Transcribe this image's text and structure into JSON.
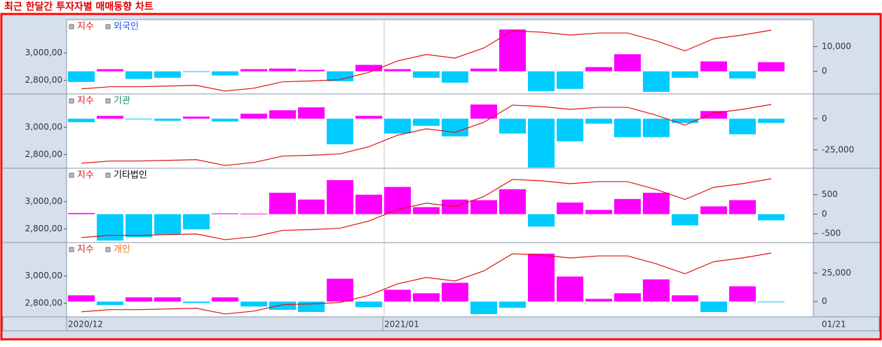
{
  "chart_data": {
    "type": "combo",
    "title": "최근 한달간 투자자별 매매동향 차트",
    "categories": [
      "2020/12",
      null,
      null,
      null,
      null,
      null,
      null,
      null,
      null,
      null,
      null,
      "2021/01",
      null,
      null,
      null,
      null,
      null,
      null,
      null,
      null,
      null,
      null,
      null,
      null,
      null
    ],
    "end_label": "01/21",
    "positive_color": "#ff00ff",
    "negative_color": "#00ccff",
    "index": {
      "name": "지수",
      "color": "#e01010",
      "values": [
        2737,
        2753,
        2753,
        2758,
        2763,
        2721,
        2742,
        2789,
        2795,
        2805,
        2858,
        2942,
        2989,
        2963,
        3037,
        3163,
        3153,
        3132,
        3147,
        3147,
        3089,
        3016,
        3105,
        3132,
        3168
      ],
      "ylim": [
        2700,
        3245
      ],
      "yticks": [
        {
          "value": 3000,
          "label": "3,000,00"
        },
        {
          "value": 2800,
          "label": "2,800,00"
        }
      ]
    },
    "series": [
      {
        "name": "외국인",
        "color": "#2050ff",
        "values": [
          -4300,
          860,
          -3100,
          -2600,
          -300,
          -1700,
          860,
          1100,
          600,
          -4000,
          2600,
          860,
          -2600,
          -4600,
          1100,
          16900,
          -8000,
          -7100,
          1700,
          6900,
          -8300,
          -2600,
          4000,
          -2900,
          3700
        ],
        "ylim": [
          -9140,
          20860
        ],
        "yticks": [
          {
            "value": 10000,
            "label": "10,000"
          },
          0
        ]
      },
      {
        "name": "기관",
        "color": "#1a8f5a",
        "values": [
          -2800,
          2300,
          -600,
          -1700,
          1700,
          -2300,
          4000,
          6800,
          9100,
          -20500,
          2300,
          -11900,
          -5700,
          -14200,
          11400,
          -11900,
          -39200,
          -18200,
          -4000,
          -14800,
          -14800,
          -3400,
          6200,
          -12500,
          -3400
        ],
        "ylim": [
          -39770,
          19890
        ],
        "yticks": [
          0,
          {
            "value": -25000,
            "label": "-25,000"
          }
        ]
      },
      {
        "name": "기타법인",
        "color": "#000000",
        "values": [
          30,
          -680,
          -590,
          -520,
          -390,
          20,
          15,
          550,
          375,
          875,
          500,
          700,
          180,
          375,
          360,
          640,
          -320,
          300,
          110,
          390,
          550,
          -290,
          200,
          360,
          -160
        ],
        "ylim": [
          -730,
          1180
        ],
        "yticks": [
          500,
          0,
          -500
        ]
      },
      {
        "name": "개인",
        "color": "#e87020",
        "values": [
          5500,
          -3000,
          3700,
          3700,
          -1200,
          3700,
          -4300,
          -7300,
          -9200,
          20100,
          -4900,
          10400,
          7300,
          16500,
          -11000,
          -5500,
          42100,
          22000,
          2400,
          7300,
          19500,
          5500,
          -9200,
          13400,
          -500
        ],
        "ylim": [
          -13420,
          51850
        ],
        "yticks": [
          {
            "value": 25000,
            "label": "25,000"
          },
          0
        ]
      }
    ]
  }
}
